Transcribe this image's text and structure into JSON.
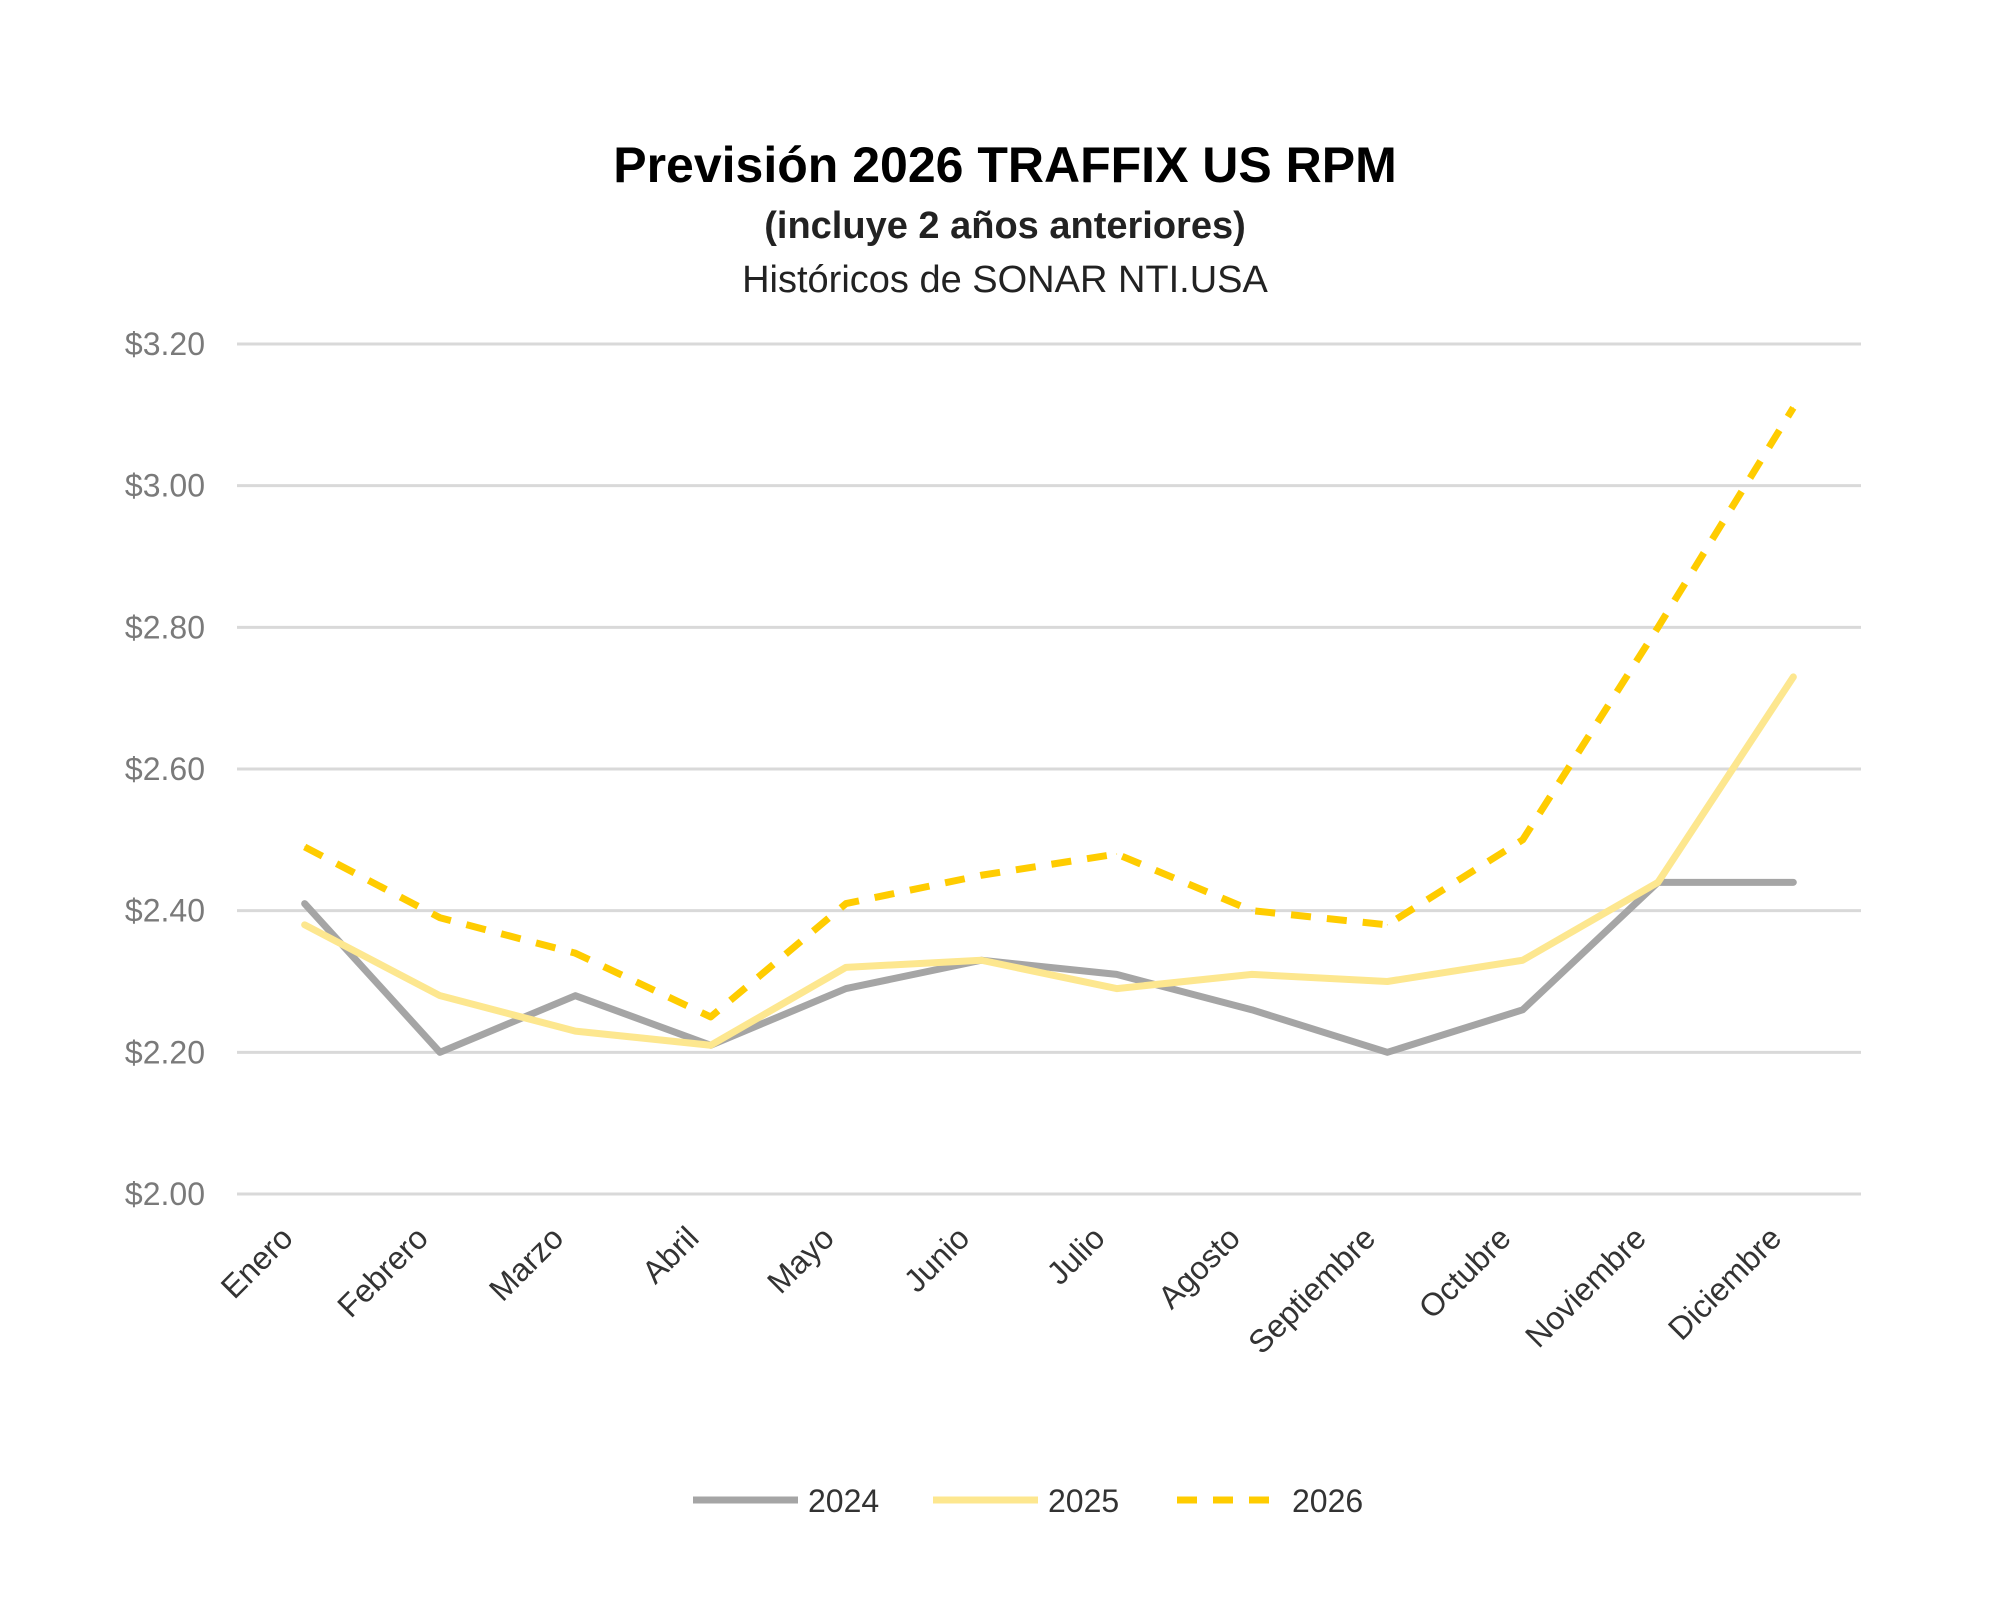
{
  "chart_data": {
    "type": "line",
    "title": "Previsión 2026 TRAFFIX US RPM",
    "subtitle": "(incluye 2 años anteriores)",
    "subtitle2": "Históricos de SONAR NTI.USA",
    "xlabel": "",
    "ylabel": "",
    "ylim": [
      2.0,
      3.2
    ],
    "yticks": [
      "$2.00",
      "$2.20",
      "$2.40",
      "$2.60",
      "$2.80",
      "$3.00",
      "$3.20"
    ],
    "ytick_values": [
      2.0,
      2.2,
      2.4,
      2.6,
      2.8,
      3.0,
      3.2
    ],
    "grid": true,
    "legend_position": "bottom",
    "categories": [
      "Enero",
      "Febrero",
      "Marzo",
      "Abril",
      "Mayo",
      "Junio",
      "Julio",
      "Agosto",
      "Septiembre",
      "Octubre",
      "Noviembre",
      "Diciembre"
    ],
    "series": [
      {
        "name": "2024",
        "color": "#a5a5a5",
        "dashed": false,
        "values": [
          2.41,
          2.2,
          2.28,
          2.21,
          2.29,
          2.33,
          2.31,
          2.26,
          2.2,
          2.26,
          2.44,
          2.44
        ]
      },
      {
        "name": "2025",
        "color": "#fde78f",
        "dashed": false,
        "values": [
          2.38,
          2.28,
          2.23,
          2.21,
          2.32,
          2.33,
          2.29,
          2.31,
          2.3,
          2.33,
          2.44,
          2.73
        ]
      },
      {
        "name": "2026",
        "color": "#ffcc00",
        "dashed": true,
        "values": [
          2.49,
          2.39,
          2.34,
          2.25,
          2.41,
          2.45,
          2.48,
          2.4,
          2.38,
          2.5,
          2.8,
          3.11
        ]
      }
    ]
  }
}
